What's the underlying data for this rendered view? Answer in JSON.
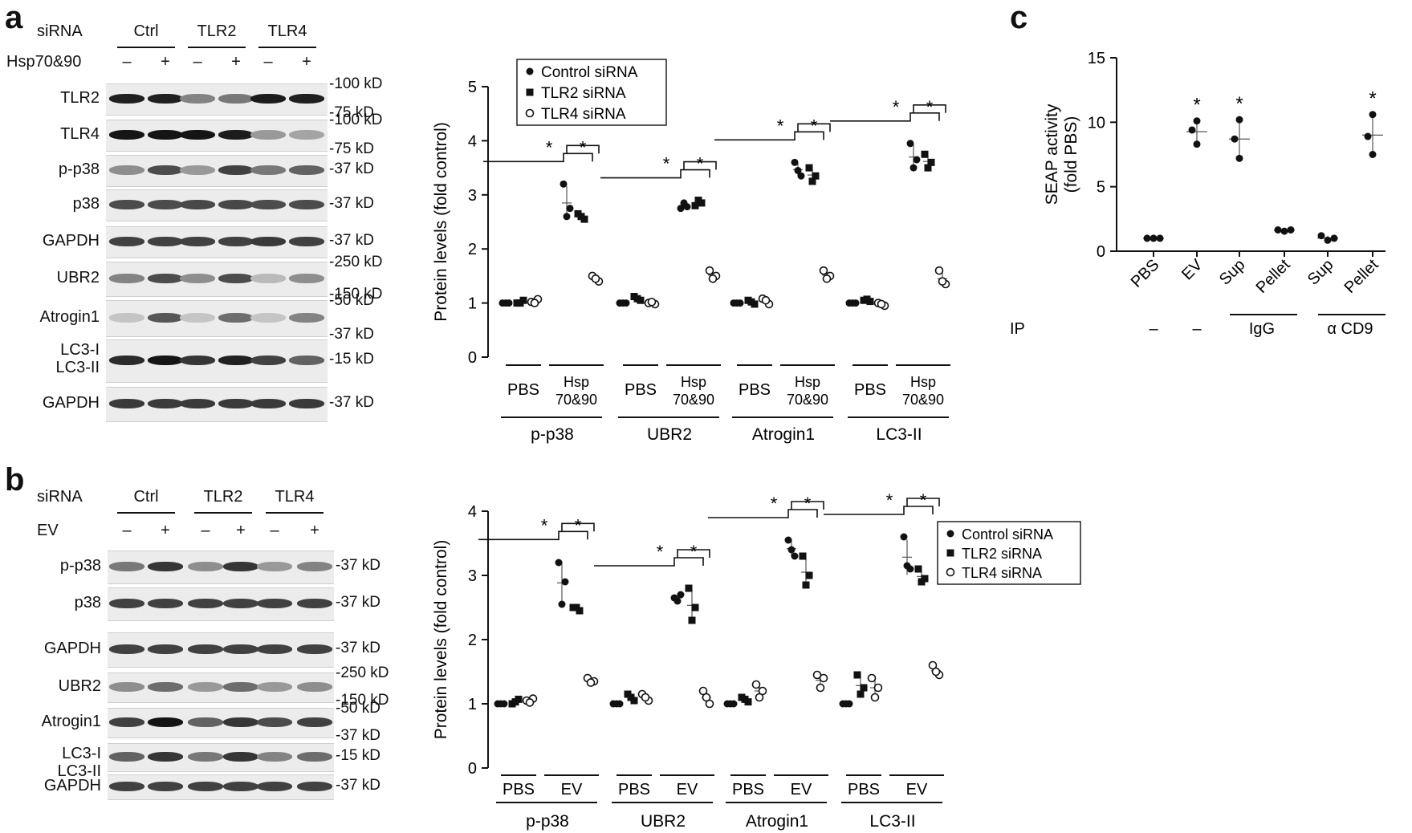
{
  "panel_a": {
    "letter": "a",
    "blot": {
      "sirna_label": "siRNA",
      "treatment_label": "Hsp70&90",
      "groups": [
        "Ctrl",
        "TLR2",
        "TLR4"
      ],
      "signs": [
        "–",
        "+",
        "–",
        "+",
        "–",
        "+"
      ],
      "rows": [
        {
          "name": "TLR2",
          "markers": [
            "-100 kD",
            "-75 kD"
          ],
          "intensity": [
            0.9,
            0.9,
            0.45,
            0.5,
            0.92,
            0.9
          ]
        },
        {
          "name": "TLR4",
          "markers": [
            "-100 kD",
            "-75 kD"
          ],
          "intensity": [
            0.95,
            0.95,
            0.95,
            0.92,
            0.35,
            0.3
          ]
        },
        {
          "name": "p-p38",
          "markers": [
            "-37 kD"
          ],
          "intensity": [
            0.4,
            0.7,
            0.35,
            0.75,
            0.5,
            0.6
          ]
        },
        {
          "name": "p38",
          "markers": [
            "-37 kD"
          ],
          "intensity": [
            0.7,
            0.7,
            0.72,
            0.72,
            0.7,
            0.7
          ]
        },
        {
          "name": "GAPDH",
          "markers": [
            "-37 kD"
          ],
          "intensity": [
            0.75,
            0.75,
            0.75,
            0.75,
            0.78,
            0.75
          ]
        },
        {
          "name": "UBR2",
          "markers": [
            "-250 kD",
            "-150 kD"
          ],
          "intensity": [
            0.45,
            0.7,
            0.4,
            0.7,
            0.2,
            0.4
          ]
        },
        {
          "name": "Atrogin1",
          "markers": [
            "-50 kD",
            "-37 kD"
          ],
          "intensity": [
            0.15,
            0.65,
            0.15,
            0.55,
            0.15,
            0.45
          ]
        },
        {
          "name": "LC3-I\nLC3-II",
          "markers": [
            "-15 kD"
          ],
          "intensity": [
            0.85,
            0.95,
            0.8,
            0.9,
            0.75,
            0.6
          ]
        },
        {
          "name": "GAPDH",
          "markers": [
            "-37 kD"
          ],
          "intensity": [
            0.78,
            0.78,
            0.78,
            0.78,
            0.78,
            0.78
          ]
        }
      ]
    }
  },
  "panel_b": {
    "letter": "b",
    "blot": {
      "sirna_label": "siRNA",
      "treatment_label": "EV",
      "groups": [
        "Ctrl",
        "TLR2",
        "TLR4"
      ],
      "signs": [
        "–",
        "+",
        "–",
        "+",
        "–",
        "+"
      ],
      "rows": [
        {
          "name": "p-p38",
          "markers": [
            "-37 kD"
          ],
          "intensity": [
            0.5,
            0.8,
            0.4,
            0.8,
            0.35,
            0.45
          ]
        },
        {
          "name": "p38",
          "markers": [
            "-37 kD"
          ],
          "intensity": [
            0.75,
            0.75,
            0.75,
            0.75,
            0.75,
            0.75
          ]
        },
        {
          "name": "GAPDH",
          "markers": [
            "-37 kD"
          ],
          "intensity": [
            0.75,
            0.75,
            0.75,
            0.75,
            0.75,
            0.75
          ]
        },
        {
          "name": "UBR2",
          "markers": [
            "-250 kD",
            "-150 kD"
          ],
          "intensity": [
            0.4,
            0.55,
            0.35,
            0.55,
            0.35,
            0.4
          ]
        },
        {
          "name": "Atrogin1",
          "markers": [
            "-50 kD",
            "-37 kD"
          ],
          "intensity": [
            0.75,
            0.95,
            0.6,
            0.8,
            0.7,
            0.75
          ]
        },
        {
          "name": "LC3-I\nLC3-II",
          "markers": [
            "-15 kD"
          ],
          "intensity": [
            0.6,
            0.8,
            0.5,
            0.8,
            0.45,
            0.55
          ]
        },
        {
          "name": "GAPDH",
          "markers": [
            "-37 kD"
          ],
          "intensity": [
            0.75,
            0.75,
            0.75,
            0.75,
            0.75,
            0.75
          ]
        }
      ]
    }
  },
  "panel_c": {
    "letter": "c"
  },
  "chart_data": [
    {
      "id": "a-chart",
      "type": "scatter",
      "ylabel": "Protein levels (fold control)",
      "ylim": [
        0,
        5
      ],
      "yticks": [
        0,
        1,
        2,
        3,
        4,
        5
      ],
      "legend": [
        "Control siRNA",
        "TLR2 siRNA",
        "TLR4 siRNA"
      ],
      "legend_position": "top-left",
      "groups": [
        {
          "name": "p-p38",
          "conditions": [
            "PBS",
            "Hsp\n70&90"
          ],
          "points": {
            "PBS": [
              [
                1.0,
                1.0,
                1.0
              ],
              [
                1.0,
                1.05,
                1.0
              ],
              [
                1.02,
                1.07,
                1.0
              ]
            ],
            "Hsp\n70&90": [
              [
                3.2,
                2.75,
                2.6
              ],
              [
                2.65,
                2.55,
                2.6
              ],
              [
                1.5,
                1.4,
                1.45
              ]
            ]
          },
          "stars": [
            "*",
            "*"
          ]
        },
        {
          "name": "UBR2",
          "conditions": [
            "PBS",
            "Hsp\n70&90"
          ],
          "points": {
            "PBS": [
              [
                1.0,
                1.0,
                1.0
              ],
              [
                1.12,
                1.05,
                1.08
              ],
              [
                1.0,
                0.98,
                1.02
              ]
            ],
            "Hsp\n70&90": [
              [
                2.75,
                2.78,
                2.85
              ],
              [
                2.8,
                2.85,
                2.9
              ],
              [
                1.6,
                1.5,
                1.45
              ]
            ]
          },
          "stars": [
            "*",
            "*"
          ]
        },
        {
          "name": "Atrogin1",
          "conditions": [
            "PBS",
            "Hsp\n70&90"
          ],
          "points": {
            "PBS": [
              [
                1.0,
                1.0,
                1.0
              ],
              [
                1.05,
                0.98,
                1.02
              ],
              [
                1.08,
                0.98,
                1.05
              ]
            ],
            "Hsp\n70&90": [
              [
                3.6,
                3.35,
                3.45
              ],
              [
                3.5,
                3.35,
                3.25
              ],
              [
                1.6,
                1.5,
                1.45
              ]
            ]
          },
          "stars": [
            "*",
            "*"
          ]
        },
        {
          "name": "LC3-II",
          "conditions": [
            "PBS",
            "Hsp\n70&90"
          ],
          "points": {
            "PBS": [
              [
                1.0,
                1.0,
                1.0
              ],
              [
                1.05,
                1.03,
                1.07
              ],
              [
                1.0,
                0.95,
                0.98
              ]
            ],
            "Hsp\n70&90": [
              [
                3.95,
                3.65,
                3.5
              ],
              [
                3.75,
                3.6,
                3.5
              ],
              [
                1.6,
                1.35,
                1.4
              ]
            ]
          },
          "stars": [
            "*",
            "*"
          ]
        }
      ]
    },
    {
      "id": "b-chart",
      "type": "scatter",
      "ylabel": "Protein levels (fold control)",
      "ylim": [
        0,
        4
      ],
      "yticks": [
        0,
        1,
        2,
        3,
        4
      ],
      "legend": [
        "Control siRNA",
        "TLR2 siRNA",
        "TLR4 siRNA"
      ],
      "legend_position": "right",
      "groups": [
        {
          "name": "p-p38",
          "conditions": [
            "PBS",
            "EV"
          ],
          "points": {
            "PBS": [
              [
                1.0,
                1.0,
                1.0
              ],
              [
                1.0,
                1.07,
                1.03
              ],
              [
                1.05,
                1.08,
                1.02
              ]
            ],
            "EV": [
              [
                3.2,
                2.9,
                2.55
              ],
              [
                2.5,
                2.45,
                2.5
              ],
              [
                1.4,
                1.35,
                1.33
              ]
            ]
          },
          "stars": [
            "*",
            "*"
          ]
        },
        {
          "name": "UBR2",
          "conditions": [
            "PBS",
            "EV"
          ],
          "points": {
            "PBS": [
              [
                1.0,
                1.0,
                1.0
              ],
              [
                1.15,
                1.05,
                1.1
              ],
              [
                1.15,
                1.05,
                1.1
              ]
            ],
            "EV": [
              [
                2.65,
                2.7,
                2.6
              ],
              [
                2.8,
                2.5,
                2.3
              ],
              [
                1.2,
                1.0,
                1.1
              ]
            ]
          },
          "stars": [
            "*",
            "*"
          ]
        },
        {
          "name": "Atrogin1",
          "conditions": [
            "PBS",
            "EV"
          ],
          "points": {
            "PBS": [
              [
                1.0,
                1.0,
                1.0
              ],
              [
                1.1,
                1.03,
                1.07
              ],
              [
                1.3,
                1.2,
                1.1
              ]
            ],
            "EV": [
              [
                3.55,
                3.3,
                3.4
              ],
              [
                3.3,
                3.0,
                2.85
              ],
              [
                1.45,
                1.4,
                1.25
              ]
            ]
          },
          "stars": [
            "*",
            "*"
          ]
        },
        {
          "name": "LC3-II",
          "conditions": [
            "PBS",
            "EV"
          ],
          "points": {
            "PBS": [
              [
                1.0,
                1.0,
                1.0
              ],
              [
                1.45,
                1.25,
                1.15
              ],
              [
                1.4,
                1.25,
                1.1
              ]
            ],
            "EV": [
              [
                3.6,
                3.1,
                3.15
              ],
              [
                3.1,
                2.95,
                2.9
              ],
              [
                1.6,
                1.45,
                1.5
              ]
            ]
          },
          "stars": [
            "*",
            "*"
          ]
        }
      ]
    },
    {
      "id": "c-chart",
      "type": "scatter",
      "ylabel_line1": "SEAP activity",
      "ylabel_line2": "(fold PBS)",
      "ylim": [
        0,
        15
      ],
      "yticks": [
        0,
        5,
        10,
        15
      ],
      "categories": [
        "PBS",
        "EV",
        "Sup",
        "Pellet",
        "Sup",
        "Pellet"
      ],
      "points": [
        [
          1.0,
          1.0,
          1.0
        ],
        [
          10.1,
          9.4,
          8.3
        ],
        [
          10.2,
          8.7,
          7.2
        ],
        [
          1.65,
          1.55,
          1.65
        ],
        [
          1.2,
          0.85,
          1.0
        ],
        [
          10.6,
          8.9,
          7.5
        ]
      ],
      "stars": [
        "",
        "*",
        "*",
        "",
        "",
        "*"
      ],
      "ip_label": "IP",
      "ip_values": [
        "–",
        "–"
      ],
      "ip_groups": [
        "IgG",
        "α CD9"
      ]
    }
  ]
}
